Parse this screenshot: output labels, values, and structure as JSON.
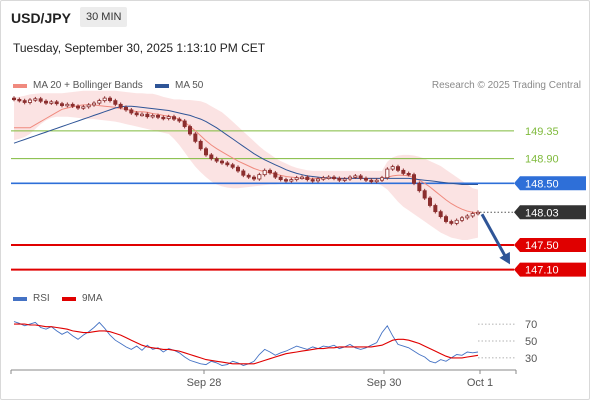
{
  "header": {
    "pair": "USD/JPY",
    "timeframe": "30 MIN",
    "datetime": "Tuesday, September 30, 2025 1:13:10 PM CET"
  },
  "legend": {
    "main": [
      {
        "label": "MA 20 + Bollinger Bands",
        "color": "#f08a7e"
      },
      {
        "label": "MA 50",
        "color": "#2f5597"
      }
    ],
    "rsi": [
      {
        "label": "RSI",
        "color": "#4472c4"
      },
      {
        "label": "9MA",
        "color": "#e00000"
      }
    ]
  },
  "credit": "Research © 2025 Trading Central",
  "colors": {
    "resistance": "#7fba3c",
    "pivot": "#2e6fd8",
    "support": "#e00000",
    "price_tag": "#333333",
    "candle_up": "#8b2e2e",
    "candle_down": "#8b2e2e",
    "bands": "#fadada",
    "arrow": "#2f5597"
  },
  "chart_data": [
    {
      "type": "candlestick",
      "title": "USD/JPY 30 MIN",
      "ylim": [
        146.9,
        149.85
      ],
      "levels": [
        {
          "value": 149.35,
          "label": "149.35",
          "kind": "resistance"
        },
        {
          "value": 148.9,
          "label": "148.90",
          "kind": "resistance"
        },
        {
          "value": 148.5,
          "label": "148.50",
          "kind": "pivot"
        },
        {
          "value": 148.03,
          "label": "148.03",
          "kind": "last_price"
        },
        {
          "value": 147.5,
          "label": "147.50",
          "kind": "support"
        },
        {
          "value": 147.1,
          "label": "147.10",
          "kind": "support"
        }
      ],
      "x_ticks": [
        "Sep 28",
        "Sep 30",
        "Oct 1"
      ],
      "close_series": [
        149.86,
        149.84,
        149.81,
        149.85,
        149.87,
        149.83,
        149.8,
        149.82,
        149.79,
        149.76,
        149.78,
        149.75,
        149.72,
        149.74,
        149.77,
        149.8,
        149.84,
        149.88,
        149.84,
        149.78,
        149.73,
        149.69,
        149.64,
        149.61,
        149.62,
        149.58,
        149.6,
        149.57,
        149.55,
        149.58,
        149.54,
        149.51,
        149.42,
        149.3,
        149.18,
        149.06,
        148.96,
        148.9,
        148.86,
        148.83,
        148.8,
        148.76,
        148.7,
        148.63,
        148.6,
        148.57,
        148.64,
        148.71,
        148.67,
        148.6,
        148.56,
        148.54,
        148.56,
        148.59,
        148.6,
        148.56,
        148.54,
        148.57,
        148.59,
        148.6,
        148.58,
        148.55,
        148.57,
        148.6,
        148.62,
        148.58,
        148.55,
        148.53,
        148.55,
        148.59,
        148.73,
        148.77,
        148.71,
        148.66,
        148.64,
        148.5,
        148.38,
        148.26,
        148.14,
        148.04,
        147.96,
        147.88,
        147.85,
        147.9,
        147.94,
        147.97,
        148.01,
        148.03
      ],
      "ma20_series": [
        149.4,
        149.4,
        149.4,
        149.4,
        149.45,
        149.5,
        149.55,
        149.6,
        149.65,
        149.7,
        149.72,
        149.74,
        149.76,
        149.77,
        149.77,
        149.77,
        149.76,
        149.75,
        149.74,
        149.73,
        149.71,
        149.7,
        149.68,
        149.66,
        149.66,
        149.65,
        149.63,
        149.62,
        149.6,
        149.59,
        149.57,
        149.54,
        149.49,
        149.42,
        149.35,
        149.27,
        149.19,
        149.12,
        149.06,
        149.01,
        148.96,
        148.91,
        148.86,
        148.82,
        148.78,
        148.74,
        148.71,
        148.69,
        148.67,
        148.65,
        148.63,
        148.61,
        148.6,
        148.59,
        148.58,
        148.58,
        148.58,
        148.58,
        148.58,
        148.58,
        148.58,
        148.58,
        148.58,
        148.58,
        148.58,
        148.58,
        148.58,
        148.58,
        148.58,
        148.58,
        148.6,
        148.62,
        148.63,
        148.63,
        148.62,
        148.59,
        148.55,
        148.5,
        148.44,
        148.37,
        148.3,
        148.23,
        148.17,
        148.12,
        148.08,
        148.05,
        148.03,
        148.02
      ],
      "band_upper_series": [
        149.9,
        149.9,
        149.92,
        149.94,
        149.95,
        149.96,
        149.96,
        149.96,
        149.96,
        149.96,
        149.97,
        149.98,
        149.99,
        150.0,
        150.0,
        150.0,
        150.0,
        150.0,
        150.0,
        150.0,
        149.99,
        149.98,
        149.97,
        149.96,
        149.96,
        149.95,
        149.95,
        149.93,
        149.9,
        149.88,
        149.86,
        149.86,
        149.85,
        149.85,
        149.84,
        149.83,
        149.8,
        149.75,
        149.7,
        149.65,
        149.58,
        149.5,
        149.42,
        149.34,
        149.26,
        149.18,
        149.1,
        149.03,
        148.97,
        148.91,
        148.86,
        148.82,
        148.78,
        148.75,
        148.73,
        148.71,
        148.7,
        148.7,
        148.7,
        148.7,
        148.7,
        148.7,
        148.7,
        148.7,
        148.7,
        148.7,
        148.7,
        148.7,
        148.7,
        148.7,
        148.85,
        148.92,
        148.95,
        148.96,
        148.96,
        148.95,
        148.93,
        148.9,
        148.86,
        148.82,
        148.78,
        148.72,
        148.66,
        148.6,
        148.54,
        148.48,
        148.42,
        148.4
      ],
      "band_lower_series": [
        149.2,
        149.22,
        149.25,
        149.3,
        149.38,
        149.46,
        149.52,
        149.56,
        149.58,
        149.58,
        149.58,
        149.57,
        149.56,
        149.55,
        149.54,
        149.54,
        149.53,
        149.52,
        149.51,
        149.5,
        149.48,
        149.46,
        149.44,
        149.42,
        149.4,
        149.38,
        149.36,
        149.34,
        149.32,
        149.3,
        149.22,
        149.12,
        149.0,
        148.88,
        148.77,
        148.68,
        148.6,
        148.53,
        148.48,
        148.45,
        148.43,
        148.42,
        148.42,
        148.43,
        148.44,
        148.45,
        148.46,
        148.47,
        148.48,
        148.48,
        148.49,
        148.49,
        148.5,
        148.5,
        148.5,
        148.5,
        148.5,
        148.5,
        148.5,
        148.5,
        148.5,
        148.5,
        148.5,
        148.5,
        148.5,
        148.5,
        148.5,
        148.5,
        148.5,
        148.46,
        148.4,
        148.3,
        148.2,
        148.12,
        148.06,
        148.0,
        147.94,
        147.88,
        147.82,
        147.76,
        147.7,
        147.66,
        147.62,
        147.6,
        147.58,
        147.58,
        147.6,
        147.62
      ],
      "ma50_series": [
        149.15,
        149.18,
        149.21,
        149.24,
        149.27,
        149.3,
        149.33,
        149.36,
        149.39,
        149.42,
        149.45,
        149.48,
        149.51,
        149.54,
        149.57,
        149.6,
        149.63,
        149.66,
        149.69,
        149.72,
        149.74,
        149.75,
        149.75,
        149.74,
        149.73,
        149.72,
        149.71,
        149.7,
        149.69,
        149.68,
        149.66,
        149.64,
        149.62,
        149.6,
        149.57,
        149.54,
        149.5,
        149.45,
        149.4,
        149.34,
        149.28,
        149.22,
        149.16,
        149.1,
        149.04,
        148.98,
        148.93,
        148.88,
        148.84,
        148.8,
        148.76,
        148.72,
        148.69,
        148.66,
        148.64,
        148.62,
        148.61,
        148.6,
        148.59,
        148.59,
        148.59,
        148.58,
        148.58,
        148.58,
        148.58,
        148.58,
        148.58,
        148.58,
        148.58,
        148.58,
        148.58,
        148.58,
        148.58,
        148.58,
        148.58,
        148.57,
        148.56,
        148.55,
        148.54,
        148.53,
        148.52,
        148.51,
        148.5,
        148.49,
        148.48,
        148.48,
        148.48,
        148.48
      ]
    },
    {
      "type": "line",
      "title": "RSI",
      "ylim": [
        18,
        82
      ],
      "y_ticks": [
        70,
        50,
        30
      ],
      "x_ticks": [
        "Sep 28",
        "Sep 30",
        "Oct 1"
      ],
      "series": [
        {
          "name": "RSI",
          "values": [
            73,
            71,
            68,
            70,
            72,
            66,
            64,
            67,
            62,
            58,
            61,
            56,
            52,
            57,
            61,
            66,
            72,
            65,
            57,
            51,
            47,
            43,
            40,
            44,
            39,
            45,
            40,
            42,
            37,
            41,
            39,
            36,
            31,
            27,
            25,
            23,
            22,
            26,
            24,
            21,
            22,
            26,
            24,
            21,
            23,
            26,
            34,
            40,
            37,
            33,
            36,
            38,
            41,
            44,
            42,
            40,
            43,
            41,
            44,
            43,
            45,
            41,
            43,
            46,
            42,
            40,
            42,
            45,
            48,
            60,
            68,
            56,
            46,
            44,
            42,
            38,
            34,
            31,
            26,
            24,
            28,
            26,
            30,
            34,
            33,
            37,
            36,
            37
          ]
        },
        {
          "name": "9MA",
          "values": [
            70,
            70,
            70,
            69,
            69,
            68,
            67,
            67,
            66,
            65,
            64,
            62,
            61,
            60,
            60,
            61,
            62,
            62,
            61,
            59,
            57,
            54,
            51,
            48,
            45,
            43,
            42,
            41,
            40,
            40,
            39,
            38,
            36,
            34,
            32,
            30,
            28,
            27,
            26,
            25,
            24,
            23,
            23,
            23,
            23,
            23,
            25,
            27,
            29,
            31,
            33,
            35,
            36,
            37,
            38,
            39,
            40,
            41,
            41,
            42,
            42,
            43,
            43,
            43,
            43,
            43,
            43,
            43,
            44,
            45,
            48,
            51,
            52,
            52,
            51,
            49,
            47,
            44,
            41,
            38,
            35,
            32,
            30,
            30,
            30,
            31,
            32,
            33
          ]
        }
      ]
    }
  ]
}
